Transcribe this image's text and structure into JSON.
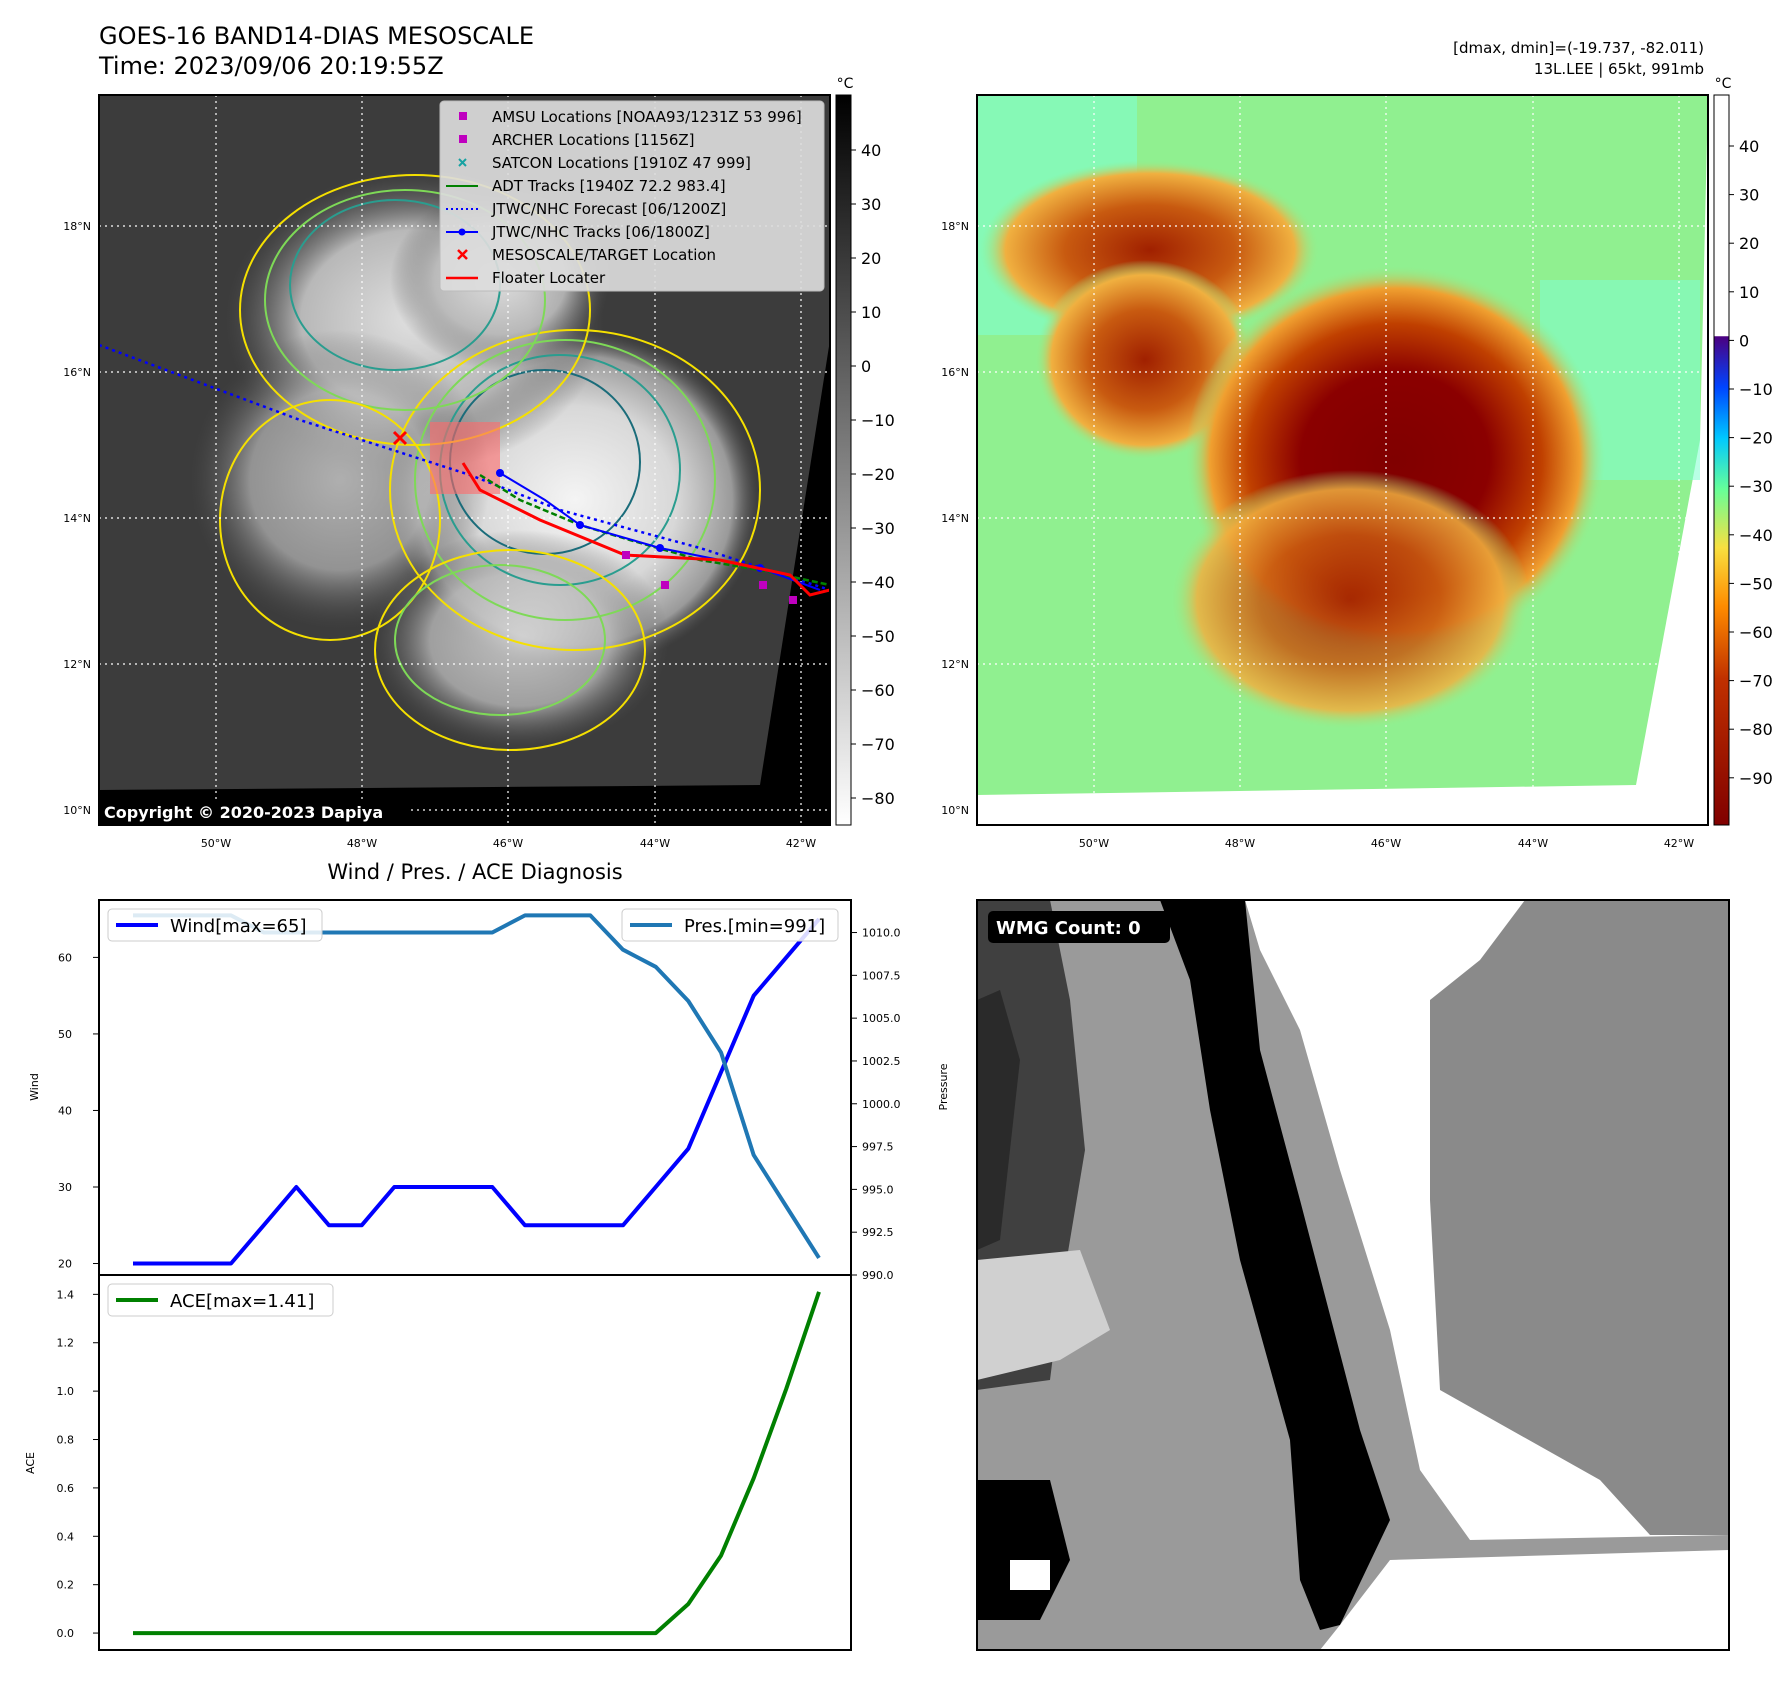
{
  "header": {
    "title": "GOES-16 BAND14-DIAS MESOSCALE",
    "time": "Time: 2023/09/06 20:19:55Z",
    "dmax_dmin": "[dmax, dmin]=(-19.737, -82.011)",
    "storm": "13L.LEE | 65kt, 991mb"
  },
  "copyright": "Copyright © 2020-2023 Dapiya",
  "wmg_count": "WMG Count: 0",
  "map": {
    "lat_labels": [
      "10°N",
      "12°N",
      "14°N",
      "16°N",
      "18°N"
    ],
    "lon_labels": [
      "50°W",
      "48°W",
      "46°W",
      "44°W",
      "42°W"
    ],
    "legend": [
      "AMSU Locations [NOAA93/1231Z 53 996]",
      "ARCHER Locations [1156Z]",
      "SATCON Locations [1910Z 47 999]",
      "ADT Tracks [1940Z 72.2 983.4]",
      "JTWC/NHC Forecast [06/1200Z]",
      "JTWC/NHC Tracks [06/1800Z]",
      "MESOSCALE/TARGET Location",
      "Floater Locater"
    ],
    "colors": {
      "amsu": "#bf00bf",
      "archer": "#bf00bf",
      "satcon": "#17a2a2",
      "adt": "#008000",
      "forecast": "#0000ff",
      "tracks": "#0000ff",
      "target": "#ff0000",
      "floater": "#ff0000"
    }
  },
  "colorbar_gray": {
    "unit": "°C",
    "ticks": [
      "40",
      "30",
      "20",
      "10",
      "0",
      "−10",
      "−20",
      "−30",
      "−40",
      "−50",
      "−60",
      "−70",
      "−80"
    ]
  },
  "colorbar_color": {
    "unit": "°C",
    "ticks": [
      "40",
      "30",
      "20",
      "10",
      "0",
      "−10",
      "−20",
      "−30",
      "−40",
      "−50",
      "−60",
      "−70",
      "−80",
      "−90"
    ]
  },
  "chart_data": {
    "type": "line",
    "title": "Wind / Pres. / ACE Diagnosis",
    "x": [
      0,
      1,
      2,
      3,
      4,
      5,
      6,
      7,
      8,
      9,
      10,
      11,
      12,
      13,
      14,
      15,
      16,
      17,
      18,
      19,
      20,
      21
    ],
    "wind": {
      "name": "Wind[max=65]",
      "ylabel": "Wind",
      "color": "#0000ff",
      "ylim": [
        18.5,
        67.5
      ],
      "ticks": [
        20,
        30,
        40,
        50,
        60
      ],
      "values": [
        20,
        20,
        20,
        20,
        25,
        30,
        25,
        25,
        30,
        30,
        30,
        30,
        25,
        25,
        25,
        25,
        30,
        35,
        45,
        55,
        60,
        65
      ]
    },
    "pressure": {
      "name": "Pres.[min=991]",
      "ylabel": "Pressure",
      "color": "#1f77b4",
      "ylim": [
        990,
        1011.9
      ],
      "ticks": [
        "990.0",
        "992.5",
        "995.0",
        "997.5",
        "1000.0",
        "1002.5",
        "1005.0",
        "1007.5",
        "1010.0"
      ],
      "values": [
        1011,
        1011,
        1011,
        1011,
        1010,
        1010,
        1010,
        1010,
        1010,
        1010,
        1010,
        1010,
        1011,
        1011,
        1011,
        1009,
        1008,
        1006,
        1003,
        997,
        994,
        991
      ]
    },
    "ace": {
      "name": "ACE[max=1.41]",
      "ylabel": "ACE",
      "color": "#008000",
      "ylim": [
        -0.07,
        1.48
      ],
      "ticks": [
        "0.0",
        "0.2",
        "0.4",
        "0.6",
        "0.8",
        "1.0",
        "1.2",
        "1.4"
      ],
      "values": [
        0,
        0,
        0,
        0,
        0,
        0,
        0,
        0,
        0,
        0,
        0,
        0,
        0,
        0,
        0,
        0,
        0,
        0.12,
        0.32,
        0.64,
        1.01,
        1.41
      ]
    }
  }
}
